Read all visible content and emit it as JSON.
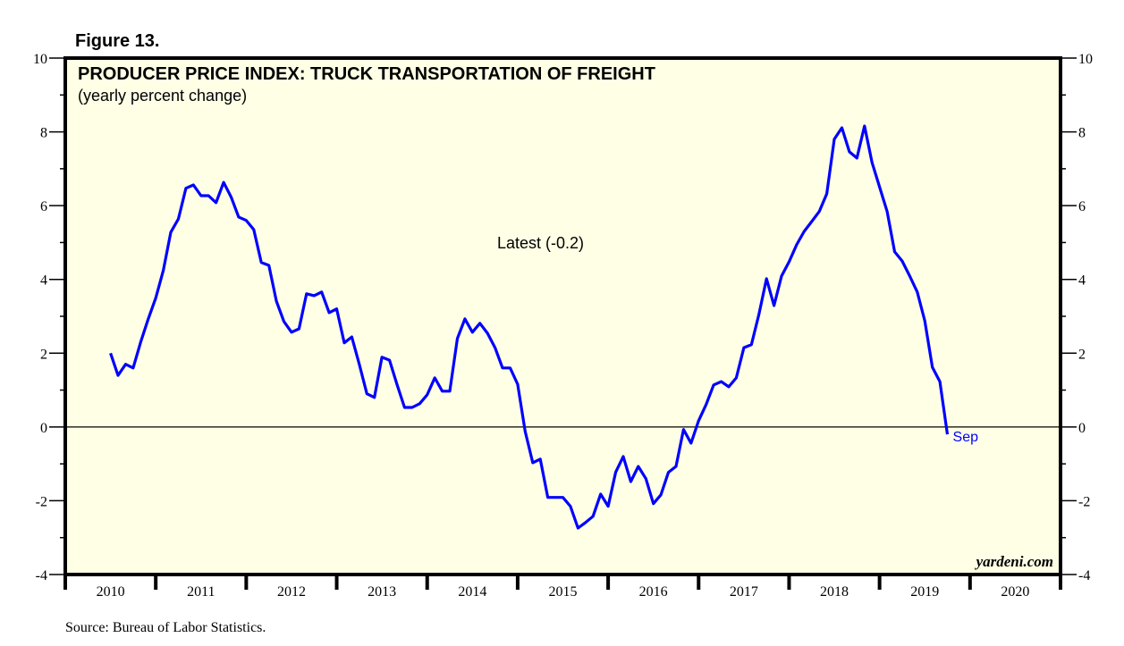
{
  "figure_label": "Figure 13.",
  "source": "Source: Bureau of Labor Statistics.",
  "watermark": "yardeni.com",
  "colors": {
    "line": "#0000FF",
    "plot_bg": "#FFFFE6",
    "frame": "#000000"
  },
  "chart_data": {
    "type": "line",
    "title": "PRODUCER PRICE INDEX: TRUCK TRANSPORTATION OF FREIGHT",
    "subtitle": "(yearly percent change)",
    "annotation": "Latest (-0.2)",
    "end_label": "Sep",
    "xlabel": "",
    "ylabel": "",
    "xlim": [
      2010,
      2021
    ],
    "ylim": [
      -4,
      10
    ],
    "y_ticks": [
      10,
      8,
      6,
      4,
      2,
      0,
      -2,
      -4
    ],
    "y_tick_labels": [
      "10",
      "8",
      "6",
      "4",
      "2",
      "0",
      "-2",
      "-4"
    ],
    "x_tick_labels": [
      "2010",
      "2011",
      "2012",
      "2013",
      "2014",
      "2015",
      "2016",
      "2017",
      "2018",
      "2019",
      "2020"
    ],
    "zero_line": true,
    "grid": false,
    "series": [
      {
        "name": "PPI truck transportation of freight, yoy %",
        "start": "2010-06",
        "frequency": "monthly",
        "values": [
          2.0,
          1.4,
          1.7,
          1.6,
          2.3,
          2.93,
          3.5,
          4.24,
          5.28,
          5.64,
          6.47,
          6.56,
          6.27,
          6.27,
          6.08,
          6.63,
          6.23,
          5.69,
          5.6,
          5.35,
          4.46,
          4.38,
          3.41,
          2.86,
          2.57,
          2.66,
          3.61,
          3.56,
          3.66,
          3.1,
          3.2,
          2.28,
          2.44,
          1.7,
          0.9,
          0.8,
          1.89,
          1.81,
          1.15,
          0.53,
          0.53,
          0.63,
          0.87,
          1.33,
          0.97,
          0.97,
          2.4,
          2.93,
          2.57,
          2.81,
          2.54,
          2.15,
          1.6,
          1.6,
          1.16,
          -0.12,
          -0.97,
          -0.87,
          -1.91,
          -1.91,
          -1.91,
          -2.15,
          -2.74,
          -2.59,
          -2.42,
          -1.82,
          -2.15,
          -1.23,
          -0.8,
          -1.48,
          -1.07,
          -1.4,
          -2.08,
          -1.84,
          -1.23,
          -1.07,
          -0.07,
          -0.44,
          0.17,
          0.61,
          1.14,
          1.23,
          1.09,
          1.33,
          2.15,
          2.23,
          3.05,
          4.02,
          3.29,
          4.09,
          4.48,
          4.94,
          5.3,
          5.57,
          5.84,
          6.32,
          7.8,
          8.11,
          7.46,
          7.29,
          8.16,
          7.17,
          6.51,
          5.84,
          4.75,
          4.5,
          4.09,
          3.66,
          2.88,
          1.62,
          1.23,
          -0.2
        ]
      }
    ]
  }
}
